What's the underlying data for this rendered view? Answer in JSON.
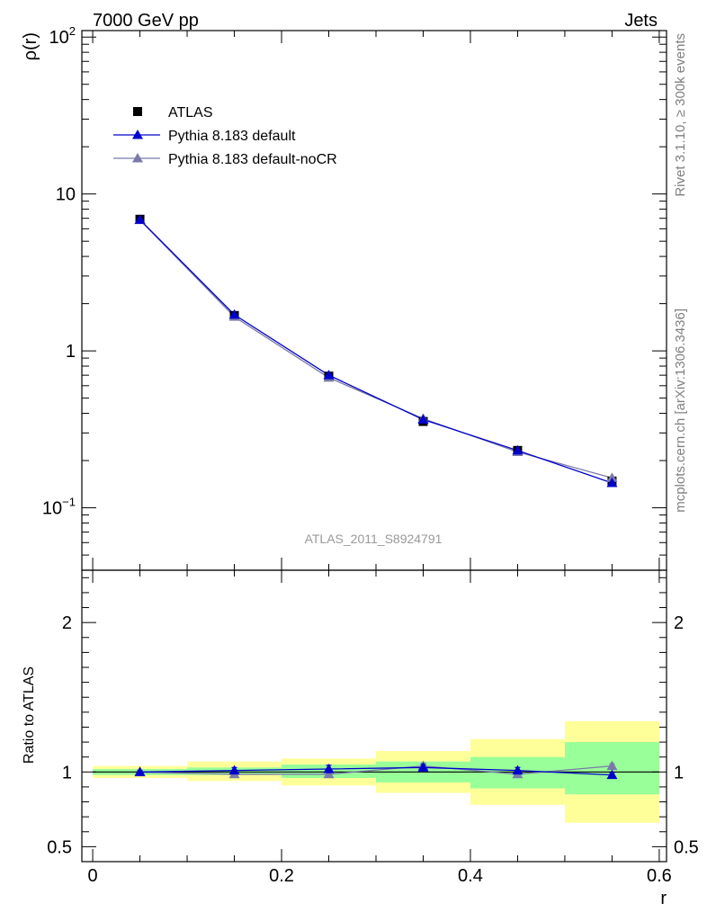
{
  "chart_data": [
    {
      "type": "line",
      "panel": "main",
      "title_left": "7000 GeV pp",
      "title_right": "Jets",
      "ylabel": "ρ(r)",
      "xlabel": "r",
      "yscale": "log",
      "xlim": [
        -0.01,
        0.6
      ],
      "ylim": [
        0.04,
        110
      ],
      "y_ticks": [
        {
          "value": 0.1,
          "base": "10",
          "exp": "−1"
        },
        {
          "value": 1,
          "base": "1",
          "exp": ""
        },
        {
          "value": 10,
          "base": "10",
          "exp": ""
        },
        {
          "value": 100,
          "base": "10",
          "exp": "2"
        }
      ],
      "x": [
        0.05,
        0.15,
        0.25,
        0.35,
        0.45,
        0.55
      ],
      "series": [
        {
          "name": "ATLAS",
          "style": "data",
          "marker": "square",
          "color": "#000000",
          "values": [
            6.9,
            1.68,
            0.69,
            0.355,
            0.232,
            0.148
          ]
        },
        {
          "name": "Pythia 8.183 default",
          "style": "line",
          "marker": "triangle",
          "color": "#0000cc",
          "values": [
            6.85,
            1.7,
            0.7,
            0.365,
            0.232,
            0.144
          ]
        },
        {
          "name": "Pythia 8.183 default-noCR",
          "style": "line",
          "marker": "triangle",
          "color": "#7a7aaa",
          "values": [
            6.82,
            1.65,
            0.675,
            0.37,
            0.227,
            0.155
          ]
        }
      ],
      "watermark": "ATLAS_2011_S8924791",
      "side_label_top": "Rivet 3.1.10, ≥ 300k events",
      "side_label_bottom": "mcplots.cern.ch [arXiv:1306.3436]"
    },
    {
      "type": "line",
      "panel": "ratio",
      "ylabel": "Ratio to ATLAS",
      "xlabel": "r",
      "ylim": [
        0.4,
        2.35
      ],
      "y_ticks": [
        {
          "value": 0.5,
          "label": "0.5"
        },
        {
          "value": 1,
          "label": "1"
        },
        {
          "value": 2,
          "label": "2"
        }
      ],
      "x_ticks": [
        {
          "value": 0,
          "label": "0"
        },
        {
          "value": 0.2,
          "label": "0.2"
        },
        {
          "value": 0.4,
          "label": "0.4"
        },
        {
          "value": 0.6,
          "label": "0.6"
        }
      ],
      "bins": [
        [
          0,
          0.1
        ],
        [
          0.1,
          0.2
        ],
        [
          0.2,
          0.3
        ],
        [
          0.3,
          0.4
        ],
        [
          0.4,
          0.5
        ],
        [
          0.5,
          0.6
        ]
      ],
      "band_stat": [
        [
          0.98,
          1.02
        ],
        [
          0.98,
          1.03
        ],
        [
          0.96,
          1.05
        ],
        [
          0.93,
          1.07
        ],
        [
          0.89,
          1.1
        ],
        [
          0.85,
          1.2
        ]
      ],
      "band_total": [
        [
          0.96,
          1.04
        ],
        [
          0.94,
          1.07
        ],
        [
          0.91,
          1.09
        ],
        [
          0.86,
          1.14
        ],
        [
          0.78,
          1.22
        ],
        [
          0.66,
          1.34
        ]
      ],
      "x": [
        0.05,
        0.15,
        0.25,
        0.35,
        0.45,
        0.55
      ],
      "series": [
        {
          "name": "Pythia 8.183 default",
          "color": "#0000cc",
          "values": [
            1.0,
            1.01,
            1.02,
            1.03,
            1.01,
            0.98
          ],
          "errors": [
            0.01,
            0.02,
            0.025,
            0.02,
            0.02,
            0.015
          ]
        },
        {
          "name": "Pythia 8.183 default-noCR",
          "color": "#7a7aaa",
          "values": [
            0.998,
            0.985,
            0.985,
            1.04,
            0.985,
            1.04
          ],
          "errors": [
            0.01,
            0.015,
            0.02,
            0.02,
            0.02,
            0.015
          ]
        }
      ]
    }
  ]
}
